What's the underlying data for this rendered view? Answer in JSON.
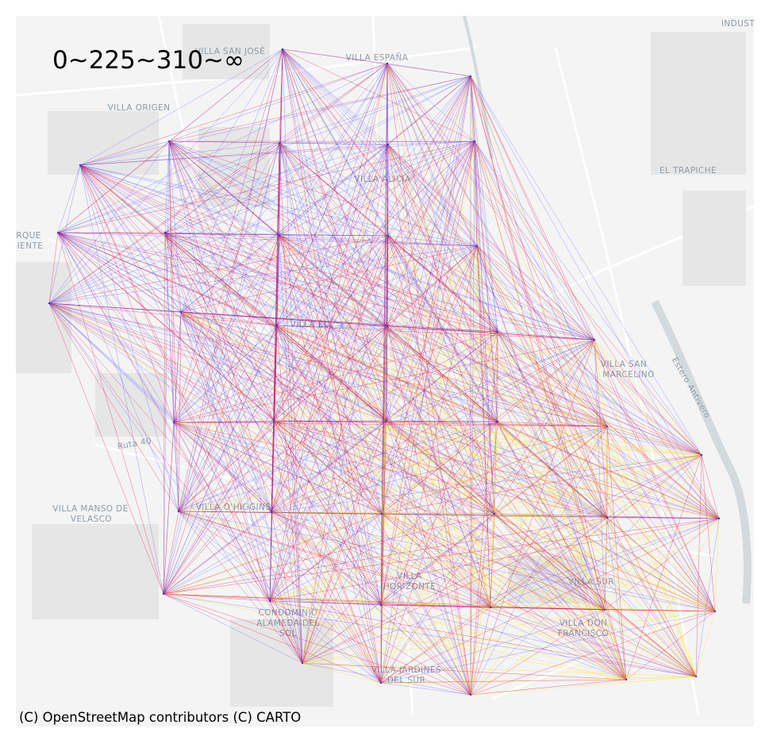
{
  "legend_title": "0~225~310~∞",
  "attribution": "(C) OpenStreetMap contributors (C) CARTO",
  "colors": {
    "low": "#3333ff",
    "mid": "#dd1144",
    "high": "#ffdd00",
    "basemap": "#f3f3f3",
    "river": "#cfd8dc"
  },
  "place_labels": [
    {
      "id": "villa-san-jose",
      "text": "VILLA SAN JOSÉ"
    },
    {
      "id": "villa-espana",
      "text": "VILLA ESPAÑA"
    },
    {
      "id": "villa-origen",
      "text": "VILLA ORIGEN"
    },
    {
      "id": "el-trapiche",
      "text": "EL TRAPICHE"
    },
    {
      "id": "villa-alicia",
      "text": "VILLA ALICIA"
    },
    {
      "id": "parque-oriente-1",
      "text": "RQUE"
    },
    {
      "id": "parque-oriente-2",
      "text": "IENTE"
    },
    {
      "id": "villa-el",
      "text": "VILLA EL"
    },
    {
      "id": "villa-san-marcelino-1",
      "text": "VILLA SAN"
    },
    {
      "id": "villa-san-marcelino-2",
      "text": "MARCELINO"
    },
    {
      "id": "villa-manso-1",
      "text": "VILLA MANSO DE"
    },
    {
      "id": "villa-manso-2",
      "text": "VELASCO"
    },
    {
      "id": "villa-ohiggins",
      "text": "VILLA O'HIGGINS"
    },
    {
      "id": "villa-horizonte-1",
      "text": "VILLA"
    },
    {
      "id": "villa-horizonte-2",
      "text": "HORIZONTE"
    },
    {
      "id": "villa-sur",
      "text": "VILLA SUR"
    },
    {
      "id": "condominio-1",
      "text": "CONDOMINIO"
    },
    {
      "id": "condominio-2",
      "text": "ALAMEDA DEL"
    },
    {
      "id": "condominio-3",
      "text": "SOL"
    },
    {
      "id": "villa-don-francisco-1",
      "text": "VILLA DON"
    },
    {
      "id": "villa-don-francisco-2",
      "text": "FRANCISCO"
    },
    {
      "id": "villa-jardines-1",
      "text": "VILLA JARDINES"
    },
    {
      "id": "villa-jardines-2",
      "text": "DEL SUR"
    },
    {
      "id": "industrial",
      "text": "INDUST"
    },
    {
      "id": "ruta-40",
      "text": "Ruta 40"
    },
    {
      "id": "estero-antivero",
      "text": "Estero Antivero"
    }
  ]
}
